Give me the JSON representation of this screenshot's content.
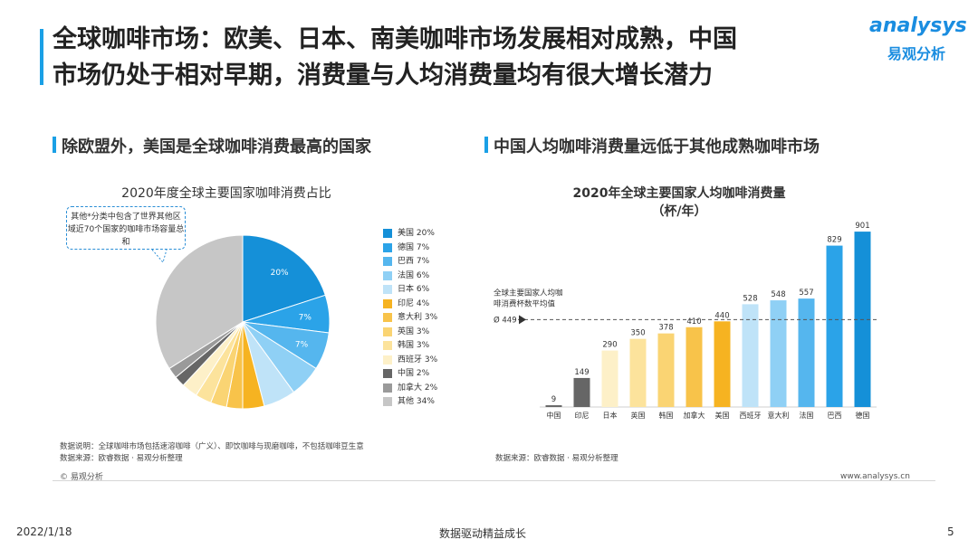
{
  "header": {
    "title_line1": "全球咖啡市场：欧美、日本、南美咖啡市场发展相对成熟，中国",
    "title_line2": "市场仍处于相对早期，消费量与人均消费量均有很大增长潜力",
    "logo_en": "analysys",
    "logo_cn": "易观分析"
  },
  "left_panel": {
    "subtitle": "除欧盟外，美国是全球咖啡消费最高的国家",
    "callout": "其他*分类中包含了世界其他区域近70个国家的咖啡市场容量总和",
    "note1": "数据说明：全球咖啡市场包括速溶咖啡（广义）、即饮咖啡与现磨咖啡，不包括咖啡豆生意",
    "note2": "数据来源：欧睿数据 · 易观分析整理"
  },
  "right_panel": {
    "subtitle": "中国人均咖啡消费量远低于其他成熟咖啡市场",
    "avg_label_line1": "全球主要国家人均咖",
    "avg_label_line2": "啡消费杯数平均值",
    "avg_value_label": "Ø 449",
    "note": "数据来源：欧睿数据 · 易观分析整理"
  },
  "footer": {
    "copyright": "© 易观分析",
    "website": "www.analysys.cn",
    "date": "2022/1/18",
    "slogan": "数据驱动精益成长",
    "page": "5"
  },
  "chart_data": [
    {
      "type": "pie",
      "title": "2020年度全球主要国家咖啡消费占比",
      "slices": [
        {
          "label": "美国 20%",
          "value": 20,
          "color": "#1590d8",
          "data_label": "20%"
        },
        {
          "label": "德国 7%",
          "value": 7,
          "color": "#2ba3e8",
          "data_label": "7%"
        },
        {
          "label": "巴西 7%",
          "value": 7,
          "color": "#55b6ee",
          "data_label": "7%"
        },
        {
          "label": "法国 6%",
          "value": 6,
          "color": "#8fd0f5",
          "data_label": ""
        },
        {
          "label": "日本 6%",
          "value": 6,
          "color": "#bfe3f8",
          "data_label": ""
        },
        {
          "label": "印尼 4%",
          "value": 4,
          "color": "#f6b321",
          "data_label": ""
        },
        {
          "label": "意大利 3%",
          "value": 3,
          "color": "#f8c34a",
          "data_label": ""
        },
        {
          "label": "英国 3%",
          "value": 3,
          "color": "#fad473",
          "data_label": ""
        },
        {
          "label": "韩国 3%",
          "value": 3,
          "color": "#fce39c",
          "data_label": ""
        },
        {
          "label": "西班牙 3%",
          "value": 3,
          "color": "#fdf0c8",
          "data_label": ""
        },
        {
          "label": "中国 2%",
          "value": 2,
          "color": "#666666",
          "data_label": ""
        },
        {
          "label": "加拿大 2%",
          "value": 2,
          "color": "#9a9a9a",
          "data_label": ""
        },
        {
          "label": "其他 34%",
          "value": 34,
          "color": "#c6c6c6",
          "data_label": ""
        }
      ]
    },
    {
      "type": "bar",
      "title_line1": "2020年全球主要国家人均咖啡消费量",
      "title_line2": "（杯/年）",
      "categories": [
        "中国",
        "印尼",
        "日本",
        "英国",
        "韩国",
        "加拿大",
        "美国",
        "西班牙",
        "意大利",
        "法国",
        "巴西",
        "德国"
      ],
      "values": [
        9,
        149,
        290,
        350,
        378,
        410,
        440,
        528,
        548,
        557,
        829,
        901
      ],
      "colors": [
        "#666666",
        "#666666",
        "#fdf0c8",
        "#fce39c",
        "#fad473",
        "#f8c34a",
        "#f6b321",
        "#bfe3f8",
        "#8fd0f5",
        "#55b6ee",
        "#2ba3e8",
        "#1590d8"
      ],
      "reference_line": 449,
      "ylim": [
        0,
        920
      ]
    }
  ]
}
